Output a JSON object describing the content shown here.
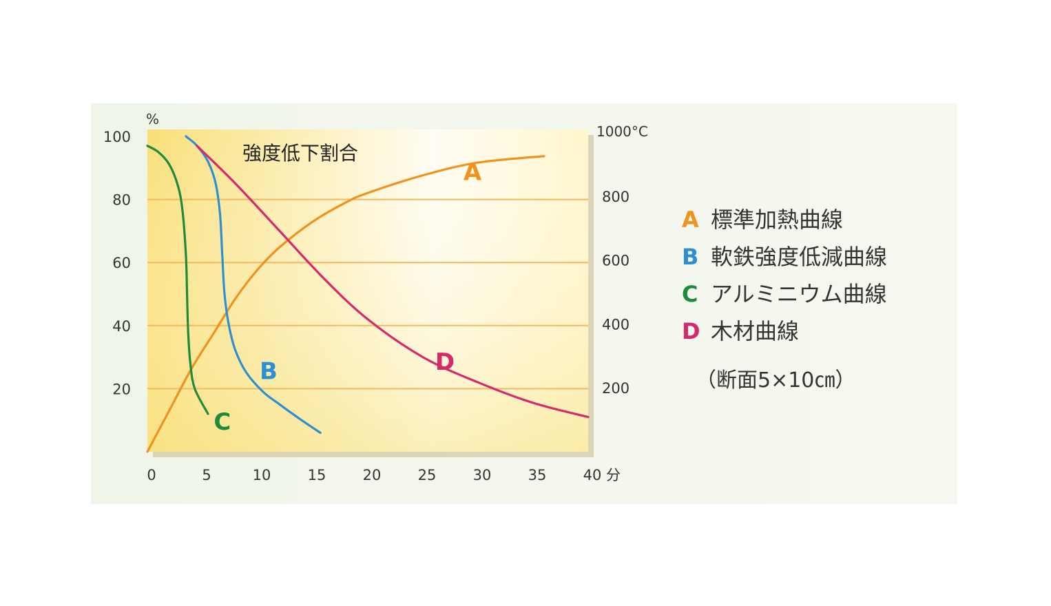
{
  "chart_data": {
    "type": "line",
    "title": "強度低下割合",
    "x_unit": "分",
    "y_left_unit": "%",
    "y_right_unit": "1000°C",
    "x_ticks": [
      0,
      5,
      10,
      15,
      20,
      25,
      30,
      35,
      40
    ],
    "x_tick_labels": [
      "0",
      "5",
      "10",
      "15",
      "20",
      "25",
      "30",
      "35",
      "40"
    ],
    "y_left_ticks": [
      20,
      40,
      60,
      80,
      100
    ],
    "y_left_tick_labels": [
      "20",
      "40",
      "60",
      "80",
      "100"
    ],
    "y_right_ticks": [
      200,
      400,
      600,
      800
    ],
    "y_right_tick_labels": [
      "200",
      "400",
      "600",
      "800"
    ],
    "xlim": [
      0,
      40
    ],
    "ylim_left": [
      0,
      100
    ],
    "ylim_right": [
      0,
      1000
    ],
    "gridlines_y_left": [
      20,
      40,
      60,
      80
    ],
    "colors": {
      "A": "#f0921e",
      "B": "#2e8fd0",
      "C": "#1f8a3c",
      "D": "#d7286a",
      "grid": "#f4b860",
      "plot_bg_warm": "#f9e07a",
      "plot_bg_light": "#fffdf2",
      "panel_bg": "#f3f6ee"
    },
    "series": [
      {
        "key": "A",
        "label": "標準加熱曲線",
        "axis": "right",
        "points": [
          [
            0,
            0
          ],
          [
            2,
            130
          ],
          [
            4,
            260
          ],
          [
            6,
            370
          ],
          [
            8,
            480
          ],
          [
            10,
            570
          ],
          [
            12,
            640
          ],
          [
            15,
            720
          ],
          [
            18,
            780
          ],
          [
            20,
            810
          ],
          [
            25,
            865
          ],
          [
            30,
            905
          ],
          [
            36,
            925
          ]
        ]
      },
      {
        "key": "B",
        "label": "軟鉄強度低減曲線",
        "axis": "left",
        "points": [
          [
            3.5,
            100
          ],
          [
            4.5,
            97
          ],
          [
            5.5,
            92
          ],
          [
            6.2,
            85
          ],
          [
            6.6,
            75
          ],
          [
            6.8,
            62
          ],
          [
            7,
            50
          ],
          [
            7.4,
            40
          ],
          [
            8,
            32
          ],
          [
            9,
            25
          ],
          [
            10.5,
            19
          ],
          [
            12,
            15
          ],
          [
            14,
            10
          ],
          [
            15.7,
            6
          ]
        ]
      },
      {
        "key": "C",
        "label": "アルミニウム曲線",
        "axis": "left",
        "points": [
          [
            0,
            97
          ],
          [
            1,
            95
          ],
          [
            2,
            91
          ],
          [
            2.8,
            84
          ],
          [
            3.2,
            76
          ],
          [
            3.5,
            62
          ],
          [
            3.6,
            50
          ],
          [
            3.7,
            38
          ],
          [
            3.9,
            28
          ],
          [
            4.3,
            20
          ],
          [
            5.5,
            12
          ]
        ]
      },
      {
        "key": "D",
        "label": "木材曲線",
        "axis": "left",
        "points": [
          [
            4.5,
            97
          ],
          [
            8,
            85
          ],
          [
            12,
            70
          ],
          [
            16,
            55
          ],
          [
            20,
            42
          ],
          [
            25,
            30
          ],
          [
            30,
            22
          ],
          [
            35,
            15.5
          ],
          [
            40,
            11
          ]
        ]
      }
    ],
    "legend_position": "right",
    "legend_note": "（断面5×10㎝）",
    "grid": true
  }
}
